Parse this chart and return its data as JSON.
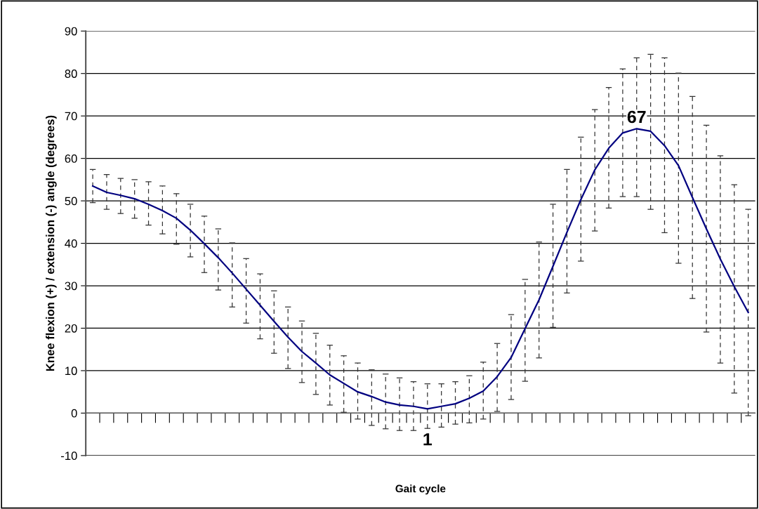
{
  "chart_data": {
    "type": "line",
    "xlabel": "Gait cycle",
    "ylabel": "Knee flexion (+) / extension (-) angle (degrees)",
    "categories": [
      null,
      null,
      null,
      null,
      null,
      null,
      null,
      null,
      null,
      null,
      null,
      null,
      null,
      null,
      null,
      null,
      null,
      null,
      null,
      null,
      null,
      null,
      null,
      null,
      null,
      null,
      null,
      null,
      null,
      null,
      null,
      null,
      null,
      null,
      null,
      null,
      null,
      null,
      null,
      null,
      null,
      null,
      null,
      null,
      null,
      null,
      null,
      null
    ],
    "series": [
      {
        "color": "#000080",
        "values": [
          53.5,
          52,
          51.3,
          50.5,
          49.2,
          47.7,
          45.9,
          43.1,
          39.9,
          36.6,
          33,
          29.2,
          25.4,
          21.6,
          17.9,
          14.5,
          11.8,
          9,
          7,
          5,
          3.9,
          2.6,
          1.9,
          1.6,
          1,
          1.6,
          2.2,
          3.5,
          5.2,
          8.6,
          13.1,
          19.9,
          26.7,
          34.6,
          42.6,
          50.3,
          57.3,
          62.4,
          66,
          67,
          66.4,
          63,
          58.3,
          50.8,
          43.4,
          36.3,
          29.8,
          23.7
        ],
        "errors": [
          [
            49.6,
            57.4
          ],
          [
            48,
            56.2
          ],
          [
            47,
            55.3
          ],
          [
            45.9,
            55
          ],
          [
            44.3,
            54.5
          ],
          [
            42.2,
            53.5
          ],
          [
            39.8,
            51.7
          ],
          [
            36.8,
            49.2
          ],
          [
            33.1,
            46.4
          ],
          [
            29,
            43.4
          ],
          [
            25,
            40.1
          ],
          [
            21.2,
            36.4
          ],
          [
            17.5,
            32.8
          ],
          [
            14.1,
            28.8
          ],
          [
            10.5,
            25
          ],
          [
            7.2,
            21.7
          ],
          [
            4.4,
            18.8
          ],
          [
            1.9,
            16
          ],
          [
            0.2,
            13.5
          ],
          [
            -1.4,
            11.8
          ],
          [
            -2.9,
            10.2
          ],
          [
            -3.7,
            9.2
          ],
          [
            -4.1,
            8.3
          ],
          [
            -4.1,
            7.4
          ],
          [
            -3.6,
            6.9
          ],
          [
            -3.3,
            6.9
          ],
          [
            -2.6,
            7.4
          ],
          [
            -2.3,
            8.8
          ],
          [
            -1.4,
            12
          ],
          [
            0.4,
            16.4
          ],
          [
            3.2,
            23.2
          ],
          [
            7.5,
            31.5
          ],
          [
            13,
            40.3
          ],
          [
            20.2,
            49.2
          ],
          [
            28.3,
            57.4
          ],
          [
            35.8,
            65
          ],
          [
            42.9,
            71.5
          ],
          [
            48.3,
            76.7
          ],
          [
            51,
            81.1
          ],
          [
            51,
            83.7
          ],
          [
            48,
            84.5
          ],
          [
            42.5,
            83.7
          ],
          [
            35.3,
            80.1
          ],
          [
            27,
            74.6
          ],
          [
            19.1,
            67.8
          ],
          [
            11.8,
            60.6
          ],
          [
            4.7,
            53.8
          ],
          [
            -0.6,
            48
          ]
        ],
        "value_labels": [
          null,
          null,
          null,
          null,
          null,
          null,
          null,
          null,
          null,
          null,
          null,
          null,
          null,
          null,
          null,
          null,
          null,
          null,
          null,
          null,
          null,
          null,
          null,
          null,
          "1",
          null,
          null,
          null,
          null,
          null,
          null,
          null,
          null,
          null,
          null,
          null,
          null,
          null,
          null,
          "67",
          null,
          null,
          null,
          null,
          null,
          null,
          null,
          null
        ]
      }
    ],
    "ylim": [
      -10,
      90
    ],
    "yticks": [
      -10,
      0,
      10,
      20,
      30,
      40,
      50,
      60,
      70,
      80,
      90
    ],
    "grid": "y",
    "legend": false,
    "marker": "none",
    "line_style": "solid"
  }
}
